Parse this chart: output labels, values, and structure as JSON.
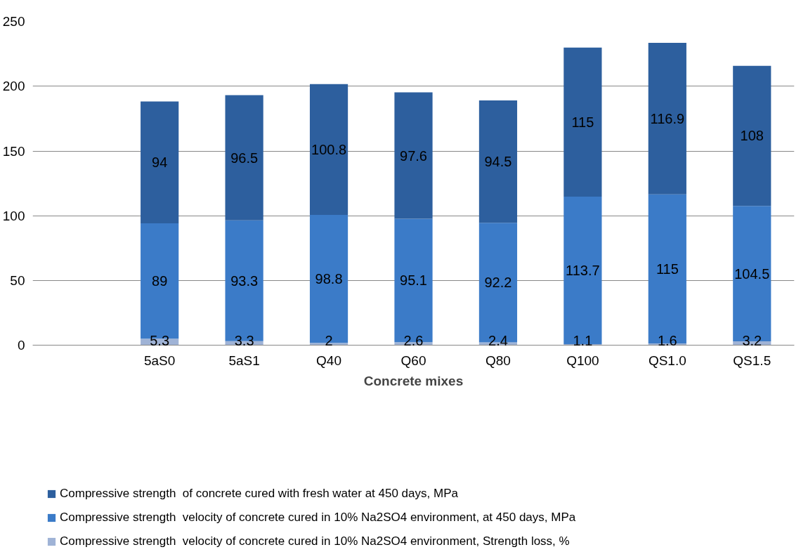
{
  "chart_data": {
    "type": "bar",
    "stacked": true,
    "xlabel": "Concrete mixes",
    "categories": [
      null,
      "5aS0",
      "5aS1",
      "Q40",
      "Q60",
      "Q80",
      "Q100",
      "QS1.0",
      "QS1.5"
    ],
    "series": [
      {
        "name": "Compressive strength  velocity of concrete cured in 10% Na2SO4 environment, Strength loss, %",
        "color": "#9fb3d6",
        "values": [
          null,
          5.3,
          3.3,
          2,
          2.6,
          2.4,
          1.1,
          1.6,
          3.2
        ]
      },
      {
        "name": "Compressive strength  velocity of concrete cured in 10% Na2SO4 environment, at 450 days, MPa",
        "color": "#3b7bc8",
        "values": [
          null,
          89,
          93.3,
          98.8,
          95.1,
          92.2,
          113.7,
          115,
          104.5
        ]
      },
      {
        "name": "Compressive strength  of concrete cured with fresh water at 450 days, MPa",
        "color": "#2d5f9e",
        "values": [
          null,
          94,
          96.5,
          100.8,
          97.6,
          94.5,
          115,
          116.9,
          108
        ]
      }
    ],
    "ylim": [
      0,
      250
    ],
    "yticks": [
      0,
      50,
      100,
      150,
      200,
      250
    ],
    "grid": "y",
    "legend": "bottom",
    "data_labels": true
  }
}
